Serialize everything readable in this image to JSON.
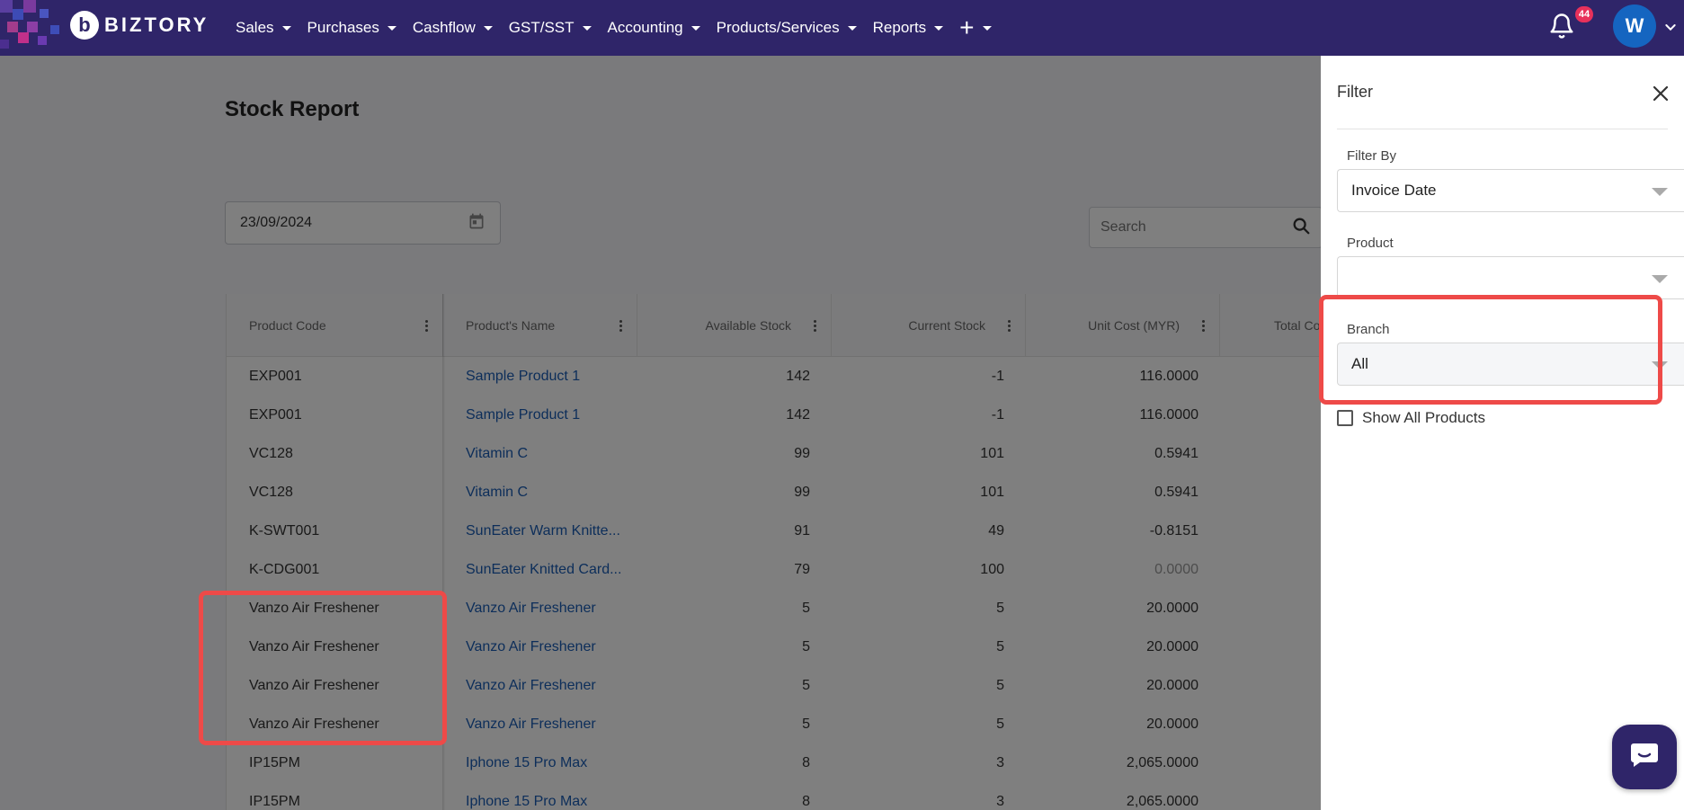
{
  "app": {
    "brand": "BIZTORY",
    "brand_mark": "b"
  },
  "nav": {
    "items": [
      "Sales",
      "Purchases",
      "Cashflow",
      "GST/SST",
      "Accounting",
      "Products/Services",
      "Reports"
    ],
    "plus_label": "+",
    "notification_count": "44",
    "avatar_initial": "W"
  },
  "page": {
    "title": "Stock Report",
    "date_value": "23/09/2024",
    "search_placeholder": "Search"
  },
  "table": {
    "columns": [
      "Product Code",
      "Product's Name",
      "Available Stock",
      "Current Stock",
      "Unit Cost (MYR)",
      "Total Co"
    ],
    "rows": [
      {
        "code": "EXP001",
        "name": "Sample Product 1",
        "available": "142",
        "current": "-1",
        "unit_cost": "116.0000"
      },
      {
        "code": "EXP001",
        "name": "Sample Product 1",
        "available": "142",
        "current": "-1",
        "unit_cost": "116.0000"
      },
      {
        "code": "VC128",
        "name": "Vitamin C",
        "available": "99",
        "current": "101",
        "unit_cost": "0.5941"
      },
      {
        "code": "VC128",
        "name": "Vitamin C",
        "available": "99",
        "current": "101",
        "unit_cost": "0.5941"
      },
      {
        "code": "K-SWT001",
        "name": "SunEater Warm Knitte...",
        "available": "91",
        "current": "49",
        "unit_cost": "-0.8151"
      },
      {
        "code": "K-CDG001",
        "name": "SunEater Knitted Card...",
        "available": "79",
        "current": "100",
        "unit_cost": "0.0000"
      },
      {
        "code": "Vanzo Air Freshener",
        "name": "Vanzo Air Freshener",
        "available": "5",
        "current": "5",
        "unit_cost": "20.0000"
      },
      {
        "code": "Vanzo Air Freshener",
        "name": "Vanzo Air Freshener",
        "available": "5",
        "current": "5",
        "unit_cost": "20.0000"
      },
      {
        "code": "Vanzo Air Freshener",
        "name": "Vanzo Air Freshener",
        "available": "5",
        "current": "5",
        "unit_cost": "20.0000"
      },
      {
        "code": "Vanzo Air Freshener",
        "name": "Vanzo Air Freshener",
        "available": "5",
        "current": "5",
        "unit_cost": "20.0000"
      },
      {
        "code": "IP15PM",
        "name": "Iphone 15 Pro Max",
        "available": "8",
        "current": "3",
        "unit_cost": "2,065.0000"
      },
      {
        "code": "IP15PM",
        "name": "Iphone 15 Pro Max",
        "available": "8",
        "current": "3",
        "unit_cost": "2,065.0000"
      }
    ]
  },
  "filter": {
    "title": "Filter",
    "filter_by_label": "Filter By",
    "filter_by_value": "Invoice Date",
    "product_label": "Product",
    "product_value": "",
    "branch_label": "Branch",
    "branch_value": "All",
    "show_all_label": "Show All Products"
  },
  "colors": {
    "nav_bg": "#2f2569",
    "link": "#1a5db5",
    "highlight": "#ee4a48",
    "badge": "#e8315b"
  },
  "icons": [
    "bell-icon",
    "calendar-icon",
    "search-icon",
    "close-icon",
    "chat-icon",
    "chevron-down-icon"
  ]
}
